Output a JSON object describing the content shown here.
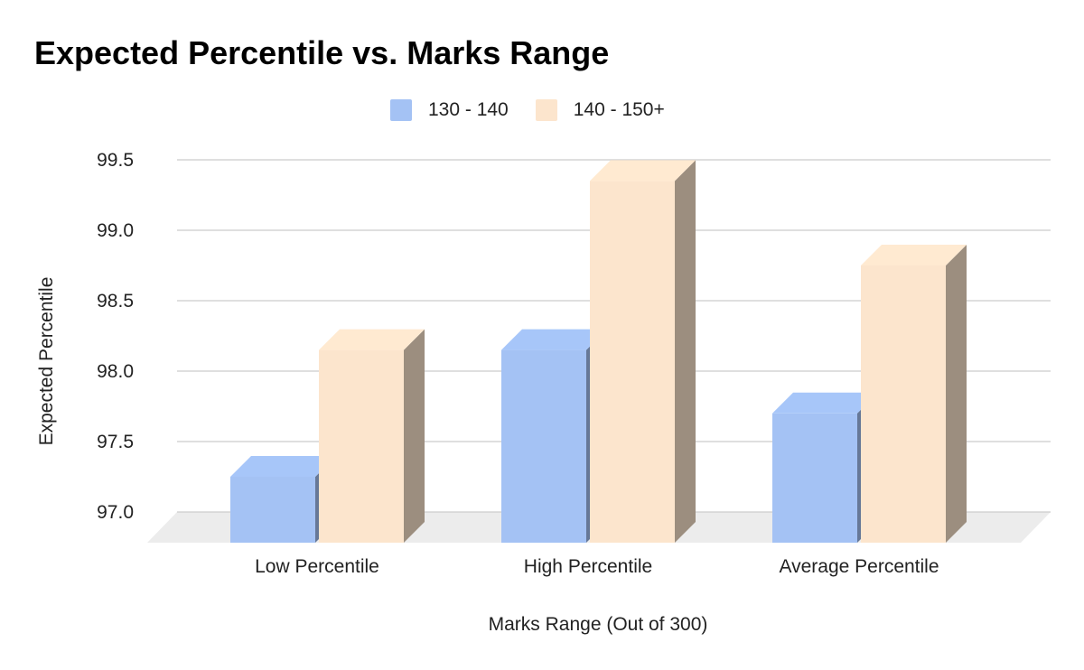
{
  "chart_data": {
    "type": "bar",
    "title": "Expected Percentile vs. Marks Range",
    "xlabel": "Marks Range (Out of 300)",
    "ylabel": "Expected Percentile",
    "categories": [
      "Low Percentile",
      "High Percentile",
      "Average Percentile"
    ],
    "series": [
      {
        "name": "130 - 140",
        "values": [
          97.25,
          98.15,
          97.7
        ],
        "color": "#a4c2f4"
      },
      {
        "name": "140 - 150+",
        "values": [
          98.15,
          99.35,
          98.75
        ],
        "color": "#fce5cd"
      }
    ],
    "yticks": [
      "97.0",
      "97.5",
      "98.0",
      "98.5",
      "99.0",
      "99.5"
    ],
    "ylim": [
      97.0,
      99.5
    ],
    "grid": true,
    "legend_position": "top",
    "style": "3d"
  }
}
